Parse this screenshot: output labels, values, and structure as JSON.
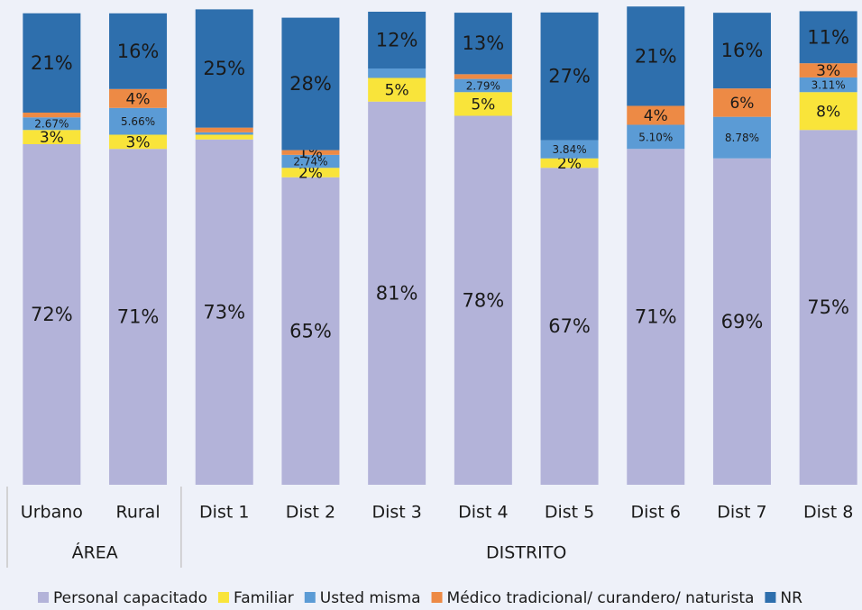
{
  "chart_data": {
    "type": "stacked_bar",
    "categories": [
      "Urbano",
      "Rural",
      "Dist 1",
      "Dist 2",
      "Dist 3",
      "Dist 4",
      "Dist 5",
      "Dist 6",
      "Dist 7",
      "Dist 8"
    ],
    "groups": [
      {
        "label": "ÁREA",
        "size": 2
      },
      {
        "label": "DISTRITO",
        "size": 8
      }
    ],
    "ylim": [
      0,
      100
    ],
    "series": [
      {
        "name": "Personal capacitado",
        "color": "#b3b3d9",
        "values": [
          72,
          71,
          73,
          65,
          81,
          78,
          67,
          71,
          69,
          75
        ],
        "value_labels": [
          "72%",
          "71%",
          "73%",
          "65%",
          "81%",
          "78%",
          "67%",
          "71%",
          "69%",
          "75%"
        ]
      },
      {
        "name": "Familiar",
        "color": "#f9e43a",
        "values": [
          3,
          3,
          1,
          2,
          5,
          5,
          2,
          0,
          0,
          8
        ],
        "value_labels": [
          "3%",
          "3%",
          null,
          "2%",
          "5%",
          "5%",
          "2%",
          null,
          null,
          "8%"
        ]
      },
      {
        "name": "Usted misma",
        "color": "#5b9bd5",
        "values": [
          2.67,
          5.66,
          0.5,
          2.74,
          2,
          2.79,
          3.84,
          5.1,
          8.78,
          3.11
        ],
        "value_labels": [
          "2.67%",
          "5.66%",
          null,
          "2.74%",
          null,
          "2.79%",
          "3.84%",
          "5.10%",
          "8.78%",
          "3.11%"
        ]
      },
      {
        "name": "Médico tradicional/ curandero/ naturista",
        "color": "#ed8a45",
        "values": [
          1,
          4,
          1,
          1,
          0,
          1,
          0,
          4,
          6,
          3
        ],
        "value_labels": [
          null,
          "4%",
          null,
          "1%",
          null,
          null,
          null,
          "4%",
          "6%",
          "3%"
        ]
      },
      {
        "name": "NR",
        "color": "#2e6fad",
        "values": [
          21,
          16,
          25,
          28,
          12,
          13,
          27,
          21,
          16,
          11
        ],
        "value_labels": [
          "21%",
          "16%",
          "25%",
          "28%",
          "12%",
          "13%",
          "27%",
          "21%",
          "16%",
          "11%"
        ]
      }
    ]
  }
}
